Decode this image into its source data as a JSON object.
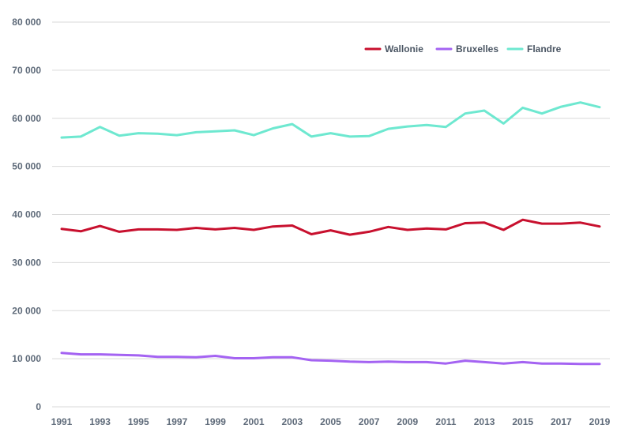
{
  "chart_data": {
    "type": "line",
    "x": [
      1991,
      1992,
      1993,
      1994,
      1995,
      1996,
      1997,
      1998,
      1999,
      2000,
      2001,
      2002,
      2003,
      2004,
      2005,
      2006,
      2007,
      2008,
      2009,
      2010,
      2011,
      2012,
      2013,
      2014,
      2015,
      2016,
      2017,
      2018,
      2019
    ],
    "x_tick_labels": [
      "1991",
      "1993",
      "1995",
      "1997",
      "1999",
      "2001",
      "2003",
      "2005",
      "2007",
      "2009",
      "2011",
      "2013",
      "2015",
      "2017",
      "2019"
    ],
    "y_tick_labels": [
      "0",
      "10 000",
      "20 000",
      "30 000",
      "40 000",
      "50 000",
      "60 000",
      "70 000",
      "80 000"
    ],
    "ylim": [
      0,
      80000
    ],
    "grid": true,
    "legend_position": "top-right",
    "series": [
      {
        "name": "Wallonie",
        "color": "#c8102e",
        "values": [
          37000,
          36500,
          37600,
          36400,
          36900,
          36900,
          36800,
          37200,
          36900,
          37200,
          36800,
          37500,
          37700,
          35900,
          36700,
          35800,
          36400,
          37400,
          36800,
          37100,
          36900,
          38200,
          38300,
          36800,
          38900,
          38100,
          38100,
          38300,
          37500
        ]
      },
      {
        "name": "Bruxelles",
        "color": "#a463f2",
        "values": [
          11200,
          10900,
          10900,
          10800,
          10700,
          10400,
          10400,
          10300,
          10600,
          10100,
          10100,
          10300,
          10300,
          9700,
          9600,
          9400,
          9300,
          9400,
          9300,
          9300,
          9000,
          9600,
          9300,
          9000,
          9300,
          9000,
          9000,
          8900,
          8900
        ]
      },
      {
        "name": "Flandre",
        "color": "#6ee8d0",
        "values": [
          56000,
          56200,
          58200,
          56400,
          56900,
          56800,
          56500,
          57100,
          57300,
          57500,
          56500,
          57900,
          58800,
          56200,
          56900,
          56200,
          56300,
          57800,
          58300,
          58600,
          58200,
          61000,
          61600,
          58900,
          62200,
          61000,
          62400,
          63300,
          62300
        ]
      }
    ]
  }
}
